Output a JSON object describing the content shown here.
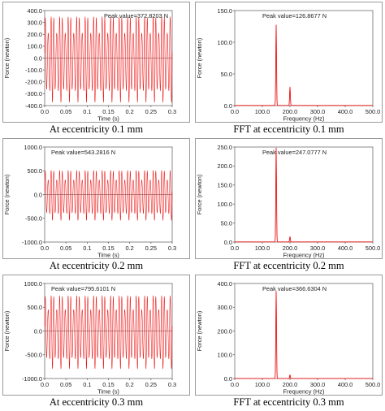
{
  "charts": [
    {
      "type": "line",
      "caption": "At eccentricity 0.1 mm",
      "annotation": "Peak value=372.8203 N",
      "xlabel": "Time (s)",
      "ylabel": "Force (newton)",
      "xlim": [
        0,
        0.3
      ],
      "ylim": [
        -400,
        400
      ],
      "xticks": [
        0,
        0.05,
        0.1,
        0.15,
        0.2,
        0.25,
        0.3
      ],
      "xtick_labels": [
        "0.0",
        "0.05",
        "0.1",
        "0.15",
        "0.2",
        "0.25",
        "0.3"
      ],
      "yticks": [
        -400,
        -300,
        -200,
        -100,
        0,
        100,
        200,
        300,
        400
      ],
      "ytick_labels": [
        "-400.0",
        "-300.0",
        "-200.0",
        "-100.0",
        "0.0",
        "100.0",
        "200.0",
        "300.0",
        "400.0"
      ],
      "series": [
        {
          "kind": "waveform",
          "peak": 372.8203,
          "components_hz": [
            150,
            200
          ],
          "color": "#ee1111"
        }
      ],
      "grid": false
    },
    {
      "type": "line",
      "caption": "FFT at eccentricity 0.1 mm",
      "annotation": "Peak value=126.8677 N",
      "xlabel": "Frequency (Hz)",
      "ylabel": "Force (newton)",
      "xlim": [
        0,
        500
      ],
      "ylim": [
        0,
        150
      ],
      "xticks": [
        0,
        100,
        200,
        300,
        400,
        500
      ],
      "xtick_labels": [
        "0.0",
        "100.0",
        "200.0",
        "300.0",
        "400.0",
        "500.0"
      ],
      "yticks": [
        0,
        50,
        100,
        150
      ],
      "ytick_labels": [
        "0.0",
        "50.0",
        "100.0",
        "150.0"
      ],
      "series": [
        {
          "kind": "spectrum",
          "peaks": [
            {
              "x": 150,
              "y": 126.8677
            },
            {
              "x": 200,
              "y": 29
            }
          ],
          "color": "#ee1111"
        }
      ],
      "grid": false
    },
    {
      "type": "line",
      "caption": "At eccentricity 0.2 mm",
      "annotation": "Peak value=543.2816 N",
      "xlabel": "Time (s)",
      "ylabel": "Force (newton)",
      "xlim": [
        0,
        0.3
      ],
      "ylim": [
        -1000,
        1000
      ],
      "xticks": [
        0,
        0.05,
        0.1,
        0.15,
        0.2,
        0.25,
        0.3
      ],
      "xtick_labels": [
        "0.0",
        "0.05",
        "0.1",
        "0.15",
        "0.2",
        "0.25",
        "0.3"
      ],
      "yticks": [
        -1000,
        -500,
        0,
        500,
        1000
      ],
      "ytick_labels": [
        "-1000.0",
        "-500.0",
        "0.0",
        "500.0",
        "1000.0"
      ],
      "series": [
        {
          "kind": "waveform",
          "peak": 543.2816,
          "components_hz": [
            150,
            200
          ],
          "color": "#ee1111"
        }
      ],
      "grid": false
    },
    {
      "type": "line",
      "caption": "FFT at eccentricity 0.2 mm",
      "annotation": "Peak value=247.0777 N",
      "xlabel": "Frequency (Hz)",
      "ylabel": "Force (newton)",
      "xlim": [
        0,
        500
      ],
      "ylim": [
        0,
        250
      ],
      "xticks": [
        0,
        100,
        200,
        300,
        400,
        500
      ],
      "xtick_labels": [
        "0.0",
        "100.0",
        "200.0",
        "300.0",
        "400.0",
        "500.0"
      ],
      "yticks": [
        0,
        50,
        100,
        150,
        200,
        250
      ],
      "ytick_labels": [
        "0.0",
        "50.0",
        "100.0",
        "150.0",
        "200.0",
        "250.0"
      ],
      "series": [
        {
          "kind": "spectrum",
          "peaks": [
            {
              "x": 150,
              "y": 247.0777
            },
            {
              "x": 200,
              "y": 14
            }
          ],
          "color": "#ee1111"
        }
      ],
      "grid": false
    },
    {
      "type": "line",
      "caption": "At eccentricity 0.3 mm",
      "annotation": "Peak value=795.6101 N",
      "xlabel": "Time (s)",
      "ylabel": "Force (newton)",
      "xlim": [
        0,
        0.3
      ],
      "ylim": [
        -1000,
        1000
      ],
      "xticks": [
        0,
        0.05,
        0.1,
        0.15,
        0.2,
        0.25,
        0.3
      ],
      "xtick_labels": [
        "0.0",
        "0.05",
        "0.1",
        "0.15",
        "0.2",
        "0.25",
        "0.3"
      ],
      "yticks": [
        -1000,
        -500,
        0,
        500,
        1000
      ],
      "ytick_labels": [
        "-1000.0",
        "-500.0",
        "0.0",
        "500.0",
        "1000.0"
      ],
      "series": [
        {
          "kind": "waveform",
          "peak": 795.6101,
          "components_hz": [
            150,
            200
          ],
          "color": "#ee1111"
        }
      ],
      "grid": false
    },
    {
      "type": "line",
      "caption": "FFT at eccentricity 0.3 mm",
      "annotation": "Peak value=366.6304 N",
      "xlabel": "Frequency (Hz)",
      "ylabel": "Force (newton)",
      "xlim": [
        0,
        500
      ],
      "ylim": [
        0,
        400
      ],
      "xticks": [
        0,
        100,
        200,
        300,
        400,
        500
      ],
      "xtick_labels": [
        "0.0",
        "100.0",
        "200.0",
        "300.0",
        "400.0",
        "500.0"
      ],
      "yticks": [
        0,
        100,
        200,
        300,
        400
      ],
      "ytick_labels": [
        "0.0",
        "100.0",
        "200.0",
        "300.0",
        "400.0"
      ],
      "series": [
        {
          "kind": "spectrum",
          "peaks": [
            {
              "x": 150,
              "y": 366.6304
            },
            {
              "x": 200,
              "y": 15
            }
          ],
          "color": "#ee1111"
        }
      ],
      "grid": false
    }
  ]
}
